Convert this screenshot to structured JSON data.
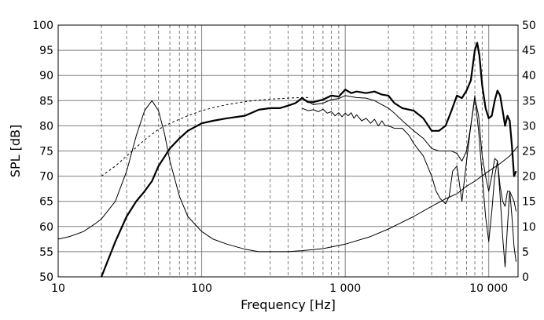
{
  "chart_data": {
    "type": "line",
    "title": "",
    "xlabel": "Frequency [Hz]",
    "ylabel": "SPL [dB]",
    "x_scale": "log",
    "xlim": [
      10,
      16000
    ],
    "ylim": [
      50,
      100
    ],
    "y2lim": [
      0,
      50
    ],
    "grid": true,
    "x_ticks": [
      {
        "value": 10,
        "label": "10"
      },
      {
        "value": 100,
        "label": "100"
      },
      {
        "value": 1000,
        "label": "1 000"
      },
      {
        "value": 10000,
        "label": "10 000"
      }
    ],
    "y_ticks": [
      {
        "value": 50,
        "label": "50"
      },
      {
        "value": 55,
        "label": "55"
      },
      {
        "value": 60,
        "label": "60"
      },
      {
        "value": 65,
        "label": "65"
      },
      {
        "value": 70,
        "label": "70"
      },
      {
        "value": 75,
        "label": "75"
      },
      {
        "value": 80,
        "label": "80"
      },
      {
        "value": 85,
        "label": "85"
      },
      {
        "value": 90,
        "label": "90"
      },
      {
        "value": 95,
        "label": "95"
      },
      {
        "value": 100,
        "label": "100"
      }
    ],
    "y2_ticks": [
      {
        "value": 0,
        "label": "0"
      },
      {
        "value": 5,
        "label": "5"
      },
      {
        "value": 10,
        "label": "10"
      },
      {
        "value": 15,
        "label": "15"
      },
      {
        "value": 20,
        "label": "20"
      },
      {
        "value": 25,
        "label": "25"
      },
      {
        "value": 30,
        "label": "30"
      },
      {
        "value": 35,
        "label": "35"
      },
      {
        "value": 40,
        "label": "40"
      },
      {
        "value": 45,
        "label": "45"
      },
      {
        "value": 50,
        "label": "50"
      }
    ],
    "series": [
      {
        "style": "thick",
        "axis": "left",
        "x": [
          20,
          25,
          30,
          35,
          40,
          45,
          50,
          60,
          70,
          80,
          100,
          120,
          150,
          200,
          250,
          300,
          350,
          400,
          450,
          500,
          550,
          600,
          700,
          800,
          900,
          1000,
          1100,
          1200,
          1400,
          1600,
          1800,
          2000,
          2200,
          2500,
          3000,
          3500,
          4000,
          4500,
          5000,
          5500,
          6000,
          6500,
          7000,
          7500,
          8000,
          8300,
          8600,
          9000,
          9500,
          10000,
          10500,
          11000,
          11500,
          12000,
          12500,
          13000,
          13500,
          14000,
          14500,
          15000,
          15500
        ],
        "y": [
          50,
          57,
          62,
          65,
          67,
          69,
          72,
          75.5,
          77.5,
          79,
          80.5,
          81,
          81.5,
          82,
          83.2,
          83.5,
          83.5,
          84,
          84.5,
          85.5,
          84.7,
          84.7,
          85.2,
          86,
          85.8,
          87.2,
          86.5,
          86.8,
          86.5,
          86.8,
          86.2,
          86,
          84.5,
          83.5,
          83,
          81.5,
          79,
          79,
          80,
          83,
          86,
          85.5,
          87,
          89,
          95,
          96.5,
          94,
          88,
          83.5,
          81.5,
          82,
          85,
          87,
          86,
          83,
          80,
          82,
          81,
          76,
          70,
          71
        ]
      },
      {
        "style": "thin",
        "axis": "left",
        "x": [
          500,
          600,
          700,
          800,
          900,
          1000,
          1100,
          1200,
          1400,
          1600,
          1800,
          2000,
          2200,
          2500,
          3000,
          3500,
          4000,
          4500,
          5000,
          5500,
          6000,
          6500,
          7000,
          7500,
          8000,
          8500,
          9000,
          9500,
          10000,
          10500,
          11000,
          11500,
          12000,
          12500,
          13000,
          13500,
          14000,
          14500,
          15000,
          15500
        ],
        "y": [
          85.5,
          84.2,
          84.5,
          85.2,
          85.4,
          86,
          85.8,
          85.6,
          85.5,
          85,
          84.2,
          83.5,
          82.5,
          81,
          79,
          77.5,
          75.5,
          75,
          75,
          75,
          74.5,
          73,
          75,
          80,
          85.5,
          82,
          74,
          70,
          67,
          70,
          73.5,
          73,
          68,
          65,
          64,
          67,
          67,
          66,
          65,
          63
        ]
      },
      {
        "style": "thin",
        "axis": "left",
        "x": [
          500,
          550,
          600,
          650,
          700,
          750,
          800,
          850,
          900,
          950,
          1000,
          1050,
          1100,
          1150,
          1200,
          1300,
          1400,
          1500,
          1600,
          1700,
          1800,
          1900,
          2000,
          2200,
          2500,
          2800,
          3000,
          3500,
          4000,
          4300,
          4600,
          5000,
          5300,
          5600,
          6000,
          6500,
          7000,
          7500,
          8000,
          8500,
          9000,
          9500,
          10000,
          10500,
          11000,
          11500,
          12000,
          12500,
          13000,
          13500,
          14000,
          14500,
          15000,
          15500
        ],
        "y": [
          83.5,
          83,
          83.2,
          82.8,
          83.3,
          82.5,
          82.8,
          82,
          82.6,
          81.8,
          82.5,
          82,
          82.6,
          81.5,
          82.2,
          81,
          81.5,
          80.5,
          81.3,
          80,
          81,
          80,
          80,
          79.5,
          79.5,
          78,
          76.5,
          74,
          70,
          67,
          65.5,
          64.5,
          66,
          71,
          72,
          65,
          73,
          80,
          86,
          79,
          70,
          62,
          57,
          63,
          70,
          73,
          66,
          58,
          52,
          60,
          67,
          62,
          56,
          53
        ]
      },
      {
        "style": "dashed",
        "axis": "left",
        "x": [
          20,
          25,
          30,
          40,
          50,
          60,
          70,
          80,
          100,
          120,
          150,
          200,
          250,
          300,
          400,
          500,
          550
        ],
        "y": [
          70,
          72,
          74,
          77.2,
          79.3,
          80.5,
          81.3,
          82,
          83,
          83.6,
          84.2,
          84.8,
          85.1,
          85.3,
          85.5,
          85.6,
          85.6
        ]
      },
      {
        "style": "thin",
        "axis": "right",
        "x": [
          10,
          12,
          15,
          18,
          20,
          25,
          30,
          35,
          40,
          45,
          50,
          55,
          60,
          70,
          80,
          100,
          120,
          150,
          200,
          250,
          300,
          400,
          500,
          700,
          1000,
          1500,
          2000,
          3000,
          4000,
          5000,
          6000,
          7000,
          8000,
          10000,
          12000,
          14000,
          16000
        ],
        "y": [
          7.5,
          8,
          9,
          10.5,
          11.5,
          15,
          21,
          28,
          33,
          35,
          33,
          28.5,
          23,
          16,
          12,
          9,
          7.5,
          6.5,
          5.5,
          5,
          5,
          5,
          5.2,
          5.6,
          6.5,
          8,
          9.5,
          12,
          14,
          15.5,
          16.5,
          18,
          19,
          21,
          22.5,
          24,
          26
        ]
      }
    ]
  }
}
